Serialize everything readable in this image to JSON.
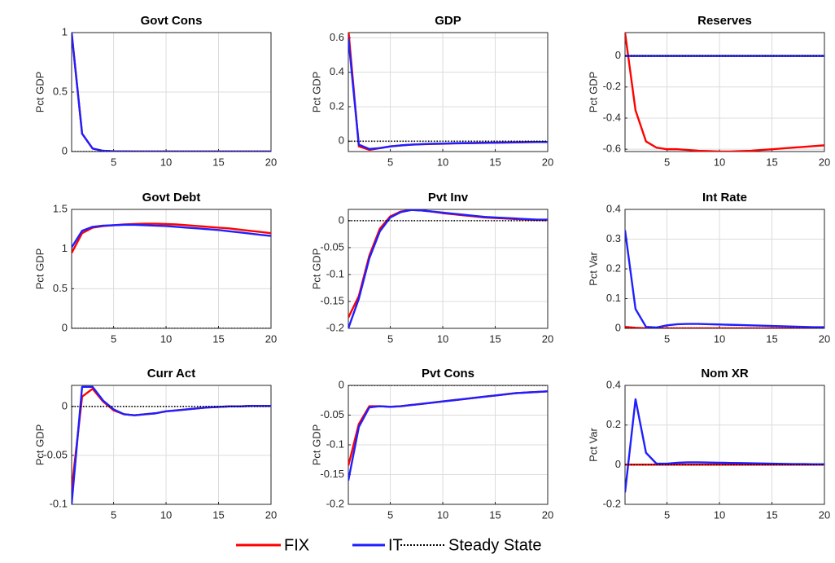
{
  "chart_data": [
    {
      "type": "line",
      "title": "Govt Cons",
      "ylabel": "Pct GDP",
      "x": [
        1,
        2,
        3,
        4,
        5,
        6,
        7,
        8,
        9,
        10,
        11,
        12,
        13,
        14,
        15,
        16,
        17,
        18,
        19,
        20
      ],
      "xlim": [
        1,
        20
      ],
      "xticks": [
        5,
        10,
        15,
        20
      ],
      "ylim": [
        0,
        1
      ],
      "yticks": [
        0,
        0.5,
        1
      ],
      "grid": true,
      "series": [
        {
          "name": "FIX",
          "color": "#ff0000",
          "values": [
            1,
            0.15,
            0.025,
            0.006,
            0.002,
            0.001,
            0,
            0,
            0,
            0,
            0,
            0,
            0,
            0,
            0,
            0,
            0,
            0,
            0,
            0
          ]
        },
        {
          "name": "IT",
          "color": "#1f1fff",
          "values": [
            1,
            0.15,
            0.025,
            0.006,
            0.002,
            0.001,
            0,
            0,
            0,
            0,
            0,
            0,
            0,
            0,
            0,
            0,
            0,
            0,
            0,
            0
          ]
        },
        {
          "name": "Steady State",
          "color": "#000000",
          "dash": true,
          "values": [
            0,
            0,
            0,
            0,
            0,
            0,
            0,
            0,
            0,
            0,
            0,
            0,
            0,
            0,
            0,
            0,
            0,
            0,
            0,
            0
          ]
        }
      ]
    },
    {
      "type": "line",
      "title": "GDP",
      "ylabel": "Pct GDP",
      "x": [
        1,
        2,
        3,
        4,
        5,
        6,
        7,
        8,
        9,
        10,
        11,
        12,
        13,
        14,
        15,
        16,
        17,
        18,
        19,
        20
      ],
      "xlim": [
        1,
        20
      ],
      "xticks": [
        5,
        10,
        15,
        20
      ],
      "ylim": [
        -0.06,
        0.63
      ],
      "yticks": [
        0,
        0.2,
        0.4,
        0.6
      ],
      "grid": true,
      "series": [
        {
          "name": "FIX",
          "color": "#ff0000",
          "values": [
            0.65,
            -0.03,
            -0.05,
            -0.04,
            -0.03,
            -0.025,
            -0.02,
            -0.018,
            -0.016,
            -0.015,
            -0.013,
            -0.012,
            -0.011,
            -0.01,
            -0.009,
            -0.008,
            -0.007,
            -0.006,
            -0.005,
            -0.005
          ]
        },
        {
          "name": "IT",
          "color": "#1f1fff",
          "values": [
            0.6,
            -0.02,
            -0.045,
            -0.04,
            -0.03,
            -0.024,
            -0.02,
            -0.017,
            -0.015,
            -0.014,
            -0.012,
            -0.011,
            -0.01,
            -0.009,
            -0.008,
            -0.007,
            -0.006,
            -0.005,
            -0.005,
            -0.004
          ]
        },
        {
          "name": "Steady State",
          "color": "#000000",
          "dash": true,
          "values": [
            0,
            0,
            0,
            0,
            0,
            0,
            0,
            0,
            0,
            0,
            0,
            0,
            0,
            0,
            0,
            0,
            0,
            0,
            0,
            0
          ]
        }
      ]
    },
    {
      "type": "line",
      "title": "Reserves",
      "ylabel": "Pct GDP",
      "x": [
        1,
        2,
        3,
        4,
        5,
        6,
        7,
        8,
        9,
        10,
        11,
        12,
        13,
        14,
        15,
        16,
        17,
        18,
        19,
        20
      ],
      "xlim": [
        1,
        20
      ],
      "xticks": [
        5,
        10,
        15,
        20
      ],
      "ylim": [
        -0.615,
        0.15
      ],
      "yticks": [
        -0.6,
        -0.4,
        -0.2,
        0
      ],
      "grid": true,
      "series": [
        {
          "name": "FIX",
          "color": "#ff0000",
          "values": [
            0.15,
            -0.35,
            -0.55,
            -0.59,
            -0.6,
            -0.6,
            -0.605,
            -0.61,
            -0.612,
            -0.615,
            -0.615,
            -0.612,
            -0.61,
            -0.605,
            -0.6,
            -0.595,
            -0.59,
            -0.585,
            -0.58,
            -0.575
          ]
        },
        {
          "name": "IT",
          "color": "#1f1fff",
          "values": [
            0,
            0,
            0,
            0,
            0,
            0,
            0,
            0,
            0,
            0,
            0,
            0,
            0,
            0,
            0,
            0,
            0,
            0,
            0,
            0
          ]
        },
        {
          "name": "Steady State",
          "color": "#000000",
          "dash": true,
          "values": [
            0,
            0,
            0,
            0,
            0,
            0,
            0,
            0,
            0,
            0,
            0,
            0,
            0,
            0,
            0,
            0,
            0,
            0,
            0,
            0
          ]
        }
      ]
    },
    {
      "type": "line",
      "title": "Govt Debt",
      "ylabel": "Pct GDP",
      "x": [
        1,
        2,
        3,
        4,
        5,
        6,
        7,
        8,
        9,
        10,
        11,
        12,
        13,
        14,
        15,
        16,
        17,
        18,
        19,
        20
      ],
      "xlim": [
        1,
        20
      ],
      "xticks": [
        5,
        10,
        15,
        20
      ],
      "ylim": [
        0,
        1.5
      ],
      "yticks": [
        0,
        0.5,
        1,
        1.5
      ],
      "grid": true,
      "series": [
        {
          "name": "FIX",
          "color": "#ff0000",
          "values": [
            0.95,
            1.2,
            1.27,
            1.29,
            1.3,
            1.31,
            1.315,
            1.32,
            1.32,
            1.315,
            1.31,
            1.3,
            1.29,
            1.28,
            1.27,
            1.26,
            1.245,
            1.23,
            1.215,
            1.2
          ]
        },
        {
          "name": "IT",
          "color": "#1f1fff",
          "values": [
            1.02,
            1.23,
            1.28,
            1.295,
            1.3,
            1.305,
            1.305,
            1.3,
            1.295,
            1.29,
            1.28,
            1.27,
            1.26,
            1.25,
            1.24,
            1.225,
            1.21,
            1.195,
            1.18,
            1.165
          ]
        },
        {
          "name": "Steady State",
          "color": "#000000",
          "dash": true,
          "values": [
            0,
            0,
            0,
            0,
            0,
            0,
            0,
            0,
            0,
            0,
            0,
            0,
            0,
            0,
            0,
            0,
            0,
            0,
            0,
            0
          ]
        }
      ]
    },
    {
      "type": "line",
      "title": "Pvt Inv",
      "ylabel": "Pct GDP",
      "x": [
        1,
        2,
        3,
        4,
        5,
        6,
        7,
        8,
        9,
        10,
        11,
        12,
        13,
        14,
        15,
        16,
        17,
        18,
        19,
        20
      ],
      "xlim": [
        1,
        20
      ],
      "xticks": [
        5,
        10,
        15,
        20
      ],
      "ylim": [
        -0.2,
        0.021
      ],
      "yticks": [
        -0.2,
        -0.15,
        -0.1,
        -0.05,
        0
      ],
      "grid": true,
      "series": [
        {
          "name": "FIX",
          "color": "#ff0000",
          "values": [
            -0.18,
            -0.14,
            -0.065,
            -0.015,
            0.008,
            0.017,
            0.02,
            0.019,
            0.017,
            0.014,
            0.012,
            0.01,
            0.008,
            0.006,
            0.005,
            0.004,
            0.003,
            0.002,
            0.0015,
            0.001
          ]
        },
        {
          "name": "IT",
          "color": "#1f1fff",
          "values": [
            -0.2,
            -0.145,
            -0.07,
            -0.02,
            0.006,
            0.016,
            0.02,
            0.019,
            0.017,
            0.015,
            0.013,
            0.011,
            0.009,
            0.007,
            0.006,
            0.005,
            0.004,
            0.003,
            0.002,
            0.002
          ]
        },
        {
          "name": "Steady State",
          "color": "#000000",
          "dash": true,
          "values": [
            0,
            0,
            0,
            0,
            0,
            0,
            0,
            0,
            0,
            0,
            0,
            0,
            0,
            0,
            0,
            0,
            0,
            0,
            0,
            0
          ]
        }
      ]
    },
    {
      "type": "line",
      "title": "Int Rate",
      "ylabel": "Pct Var",
      "x": [
        1,
        2,
        3,
        4,
        5,
        6,
        7,
        8,
        9,
        10,
        11,
        12,
        13,
        14,
        15,
        16,
        17,
        18,
        19,
        20
      ],
      "xlim": [
        1,
        20
      ],
      "xticks": [
        5,
        10,
        15,
        20
      ],
      "ylim": [
        0,
        0.4
      ],
      "yticks": [
        0,
        0.1,
        0.2,
        0.3,
        0.4
      ],
      "grid": true,
      "series": [
        {
          "name": "FIX",
          "color": "#ff0000",
          "values": [
            0.005,
            0.002,
            0,
            0,
            0,
            0,
            0,
            0,
            0,
            0,
            0,
            0,
            0,
            0,
            0,
            0,
            0,
            0,
            0,
            0
          ]
        },
        {
          "name": "IT",
          "color": "#1f1fff",
          "values": [
            0.33,
            0.065,
            0.005,
            0.003,
            0.01,
            0.014,
            0.015,
            0.015,
            0.014,
            0.013,
            0.012,
            0.011,
            0.01,
            0.009,
            0.008,
            0.007,
            0.006,
            0.005,
            0.004,
            0.004
          ]
        },
        {
          "name": "Steady State",
          "color": "#000000",
          "dash": true,
          "values": [
            0,
            0,
            0,
            0,
            0,
            0,
            0,
            0,
            0,
            0,
            0,
            0,
            0,
            0,
            0,
            0,
            0,
            0,
            0,
            0
          ]
        }
      ]
    },
    {
      "type": "line",
      "title": "Curr Act",
      "ylabel": "Pct GDP",
      "x": [
        1,
        2,
        3,
        4,
        5,
        6,
        7,
        8,
        9,
        10,
        11,
        12,
        13,
        14,
        15,
        16,
        17,
        18,
        19,
        20
      ],
      "xlim": [
        1,
        20
      ],
      "xticks": [
        5,
        10,
        15,
        20
      ],
      "ylim": [
        -0.1,
        0.0215
      ],
      "yticks": [
        -0.1,
        -0.05,
        0
      ],
      "grid": true,
      "series": [
        {
          "name": "FIX",
          "color": "#ff0000",
          "values": [
            -0.085,
            0.01,
            0.018,
            0.005,
            -0.004,
            -0.008,
            -0.009,
            -0.008,
            -0.007,
            -0.005,
            -0.004,
            -0.003,
            -0.002,
            -0.001,
            -0.0005,
            0,
            0,
            0.0005,
            0.0005,
            0.0005
          ]
        },
        {
          "name": "IT",
          "color": "#1f1fff",
          "values": [
            -0.1,
            0.02,
            0.02,
            0.006,
            -0.003,
            -0.008,
            -0.009,
            -0.008,
            -0.007,
            -0.005,
            -0.004,
            -0.003,
            -0.002,
            -0.001,
            -0.0005,
            0,
            0,
            0.0005,
            0.0005,
            0.0005
          ]
        },
        {
          "name": "Steady State",
          "color": "#000000",
          "dash": true,
          "values": [
            0,
            0,
            0,
            0,
            0,
            0,
            0,
            0,
            0,
            0,
            0,
            0,
            0,
            0,
            0,
            0,
            0,
            0,
            0,
            0
          ]
        }
      ]
    },
    {
      "type": "line",
      "title": "Pvt Cons",
      "ylabel": "Pct GDP",
      "x": [
        1,
        2,
        3,
        4,
        5,
        6,
        7,
        8,
        9,
        10,
        11,
        12,
        13,
        14,
        15,
        16,
        17,
        18,
        19,
        20
      ],
      "xlim": [
        1,
        20
      ],
      "xticks": [
        5,
        10,
        15,
        20
      ],
      "ylim": [
        -0.2,
        0
      ],
      "yticks": [
        -0.2,
        -0.15,
        -0.1,
        -0.05,
        0
      ],
      "grid": true,
      "series": [
        {
          "name": "FIX",
          "color": "#ff0000",
          "values": [
            -0.135,
            -0.065,
            -0.035,
            -0.035,
            -0.036,
            -0.035,
            -0.033,
            -0.031,
            -0.029,
            -0.027,
            -0.025,
            -0.023,
            -0.021,
            -0.019,
            -0.017,
            -0.015,
            -0.013,
            -0.012,
            -0.011,
            -0.01
          ]
        },
        {
          "name": "IT",
          "color": "#1f1fff",
          "values": [
            -0.16,
            -0.07,
            -0.037,
            -0.035,
            -0.036,
            -0.035,
            -0.033,
            -0.031,
            -0.029,
            -0.027,
            -0.025,
            -0.023,
            -0.021,
            -0.019,
            -0.017,
            -0.015,
            -0.013,
            -0.012,
            -0.011,
            -0.01
          ]
        },
        {
          "name": "Steady State",
          "color": "#000000",
          "dash": true,
          "values": [
            0,
            0,
            0,
            0,
            0,
            0,
            0,
            0,
            0,
            0,
            0,
            0,
            0,
            0,
            0,
            0,
            0,
            0,
            0,
            0
          ]
        }
      ]
    },
    {
      "type": "line",
      "title": "Nom XR",
      "ylabel": "Pct Var",
      "x": [
        1,
        2,
        3,
        4,
        5,
        6,
        7,
        8,
        9,
        10,
        11,
        12,
        13,
        14,
        15,
        16,
        17,
        18,
        19,
        20
      ],
      "xlim": [
        1,
        20
      ],
      "xticks": [
        5,
        10,
        15,
        20
      ],
      "ylim": [
        -0.2,
        0.4
      ],
      "yticks": [
        -0.2,
        0,
        0.2,
        0.4
      ],
      "grid": true,
      "series": [
        {
          "name": "FIX",
          "color": "#ff0000",
          "values": [
            0,
            0,
            0,
            0,
            0,
            0,
            0,
            0,
            0,
            0,
            0,
            0,
            0,
            0,
            0,
            0,
            0,
            0,
            0,
            0
          ]
        },
        {
          "name": "IT",
          "color": "#1f1fff",
          "values": [
            -0.14,
            0.33,
            0.06,
            0.005,
            0.005,
            0.01,
            0.012,
            0.012,
            0.011,
            0.01,
            0.009,
            0.008,
            0.007,
            0.006,
            0.005,
            0.004,
            0.003,
            0.003,
            0.002,
            0.002
          ]
        },
        {
          "name": "Steady State",
          "color": "#000000",
          "dash": true,
          "values": [
            0,
            0,
            0,
            0,
            0,
            0,
            0,
            0,
            0,
            0,
            0,
            0,
            0,
            0,
            0,
            0,
            0,
            0,
            0,
            0
          ]
        }
      ]
    }
  ]
}
